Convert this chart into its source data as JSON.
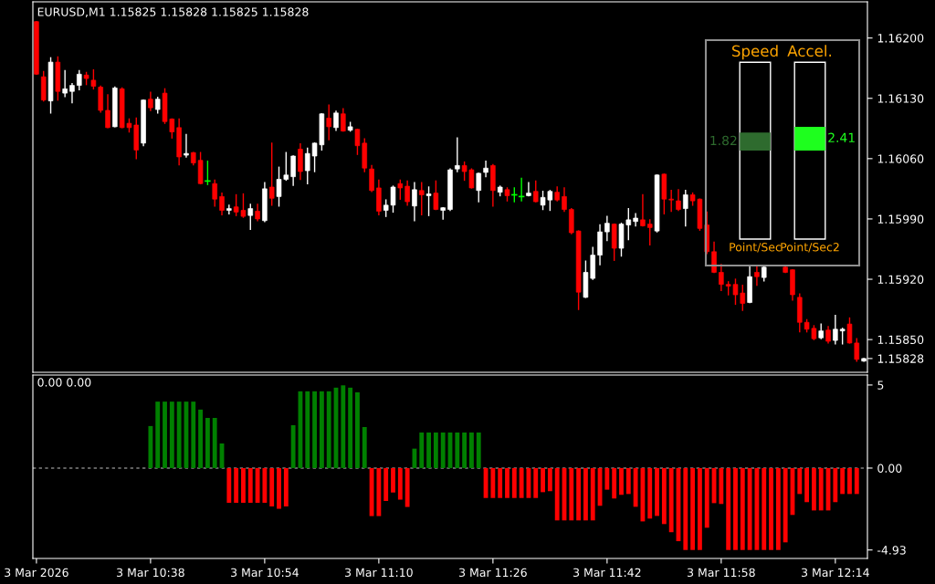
{
  "chart_data": [
    {
      "type": "candlestick",
      "title": "EURUSD,M1 1.15825 1.15828 1.15825 1.15828",
      "ohlc": [
        [
          1.16219,
          1.16219,
          1.16158,
          1.16158
        ],
        [
          1.16155,
          1.16161,
          1.16127,
          1.16128
        ],
        [
          1.16127,
          1.16177,
          1.16113,
          1.16172
        ],
        [
          1.16172,
          1.16178,
          1.16128,
          1.16138
        ],
        [
          1.16136,
          1.16162,
          1.16132,
          1.16141
        ],
        [
          1.16138,
          1.16147,
          1.16125,
          1.16145
        ],
        [
          1.16145,
          1.16162,
          1.1614,
          1.16158
        ],
        [
          1.16157,
          1.1616,
          1.16146,
          1.16153
        ],
        [
          1.16151,
          1.16163,
          1.16141,
          1.16144
        ],
        [
          1.16143,
          1.16144,
          1.16114,
          1.16116
        ],
        [
          1.16116,
          1.16134,
          1.16096,
          1.16096
        ],
        [
          1.16097,
          1.16143,
          1.16097,
          1.16142
        ],
        [
          1.16141,
          1.16142,
          1.16096,
          1.16096
        ],
        [
          1.16101,
          1.16106,
          1.16091,
          1.16096
        ],
        [
          1.16099,
          1.16107,
          1.1606,
          1.1607
        ],
        [
          1.16078,
          1.16128,
          1.16075,
          1.16128
        ],
        [
          1.16129,
          1.16137,
          1.16116,
          1.16119
        ],
        [
          1.16117,
          1.16131,
          1.16113,
          1.16129
        ],
        [
          1.16136,
          1.16141,
          1.16101,
          1.16103
        ],
        [
          1.16106,
          1.16106,
          1.16084,
          1.16091
        ],
        [
          1.16096,
          1.16106,
          1.16053,
          1.16062
        ],
        [
          1.16064,
          1.16088,
          1.16062,
          1.16066
        ],
        [
          1.16067,
          1.16067,
          1.16053,
          1.16055
        ],
        [
          1.16058,
          1.16067,
          1.16031,
          1.16031
        ],
        [
          1.16034,
          1.16057,
          1.1603,
          1.16034
        ],
        [
          1.16031,
          1.16035,
          1.16005,
          1.16013
        ],
        [
          1.16016,
          1.1602,
          1.15995,
          1.16
        ],
        [
          1.16,
          1.16006,
          1.15996,
          1.16002
        ],
        [
          1.16004,
          1.16018,
          1.15994,
          1.15998
        ],
        [
          1.16,
          1.16019,
          1.15992,
          1.15993
        ],
        [
          1.15994,
          1.16007,
          1.15978,
          1.16002
        ],
        [
          1.15999,
          1.16007,
          1.15988,
          1.1599
        ],
        [
          1.15988,
          1.16032,
          1.15987,
          1.16025
        ],
        [
          1.16027,
          1.16078,
          1.16006,
          1.16014
        ],
        [
          1.16016,
          1.1605,
          1.16005,
          1.16036
        ],
        [
          1.16036,
          1.16067,
          1.16035,
          1.16041
        ],
        [
          1.16039,
          1.16063,
          1.16029,
          1.16063
        ],
        [
          1.16071,
          1.16077,
          1.16036,
          1.16045
        ],
        [
          1.16046,
          1.16072,
          1.16031,
          1.16066
        ],
        [
          1.16063,
          1.16078,
          1.16045,
          1.16078
        ],
        [
          1.16076,
          1.16112,
          1.1607,
          1.16112
        ],
        [
          1.16107,
          1.16122,
          1.16082,
          1.16097
        ],
        [
          1.16096,
          1.16115,
          1.16093,
          1.16113
        ],
        [
          1.16112,
          1.16118,
          1.16092,
          1.16092
        ],
        [
          1.16093,
          1.16102,
          1.16092,
          1.16097
        ],
        [
          1.16094,
          1.16094,
          1.16065,
          1.16075
        ],
        [
          1.16078,
          1.16083,
          1.16045,
          1.16049
        ],
        [
          1.16048,
          1.16052,
          1.16022,
          1.16023
        ],
        [
          1.16026,
          1.16035,
          1.15995,
          1.15999
        ],
        [
          1.16,
          1.16012,
          1.15993,
          1.16006
        ],
        [
          1.16006,
          1.16028,
          1.15998,
          1.16027
        ],
        [
          1.16031,
          1.16035,
          1.16013,
          1.16026
        ],
        [
          1.16028,
          1.16034,
          1.16006,
          1.1601
        ],
        [
          1.16005,
          1.16032,
          1.15988,
          1.16024
        ],
        [
          1.16023,
          1.16032,
          1.15995,
          1.16018
        ],
        [
          1.16017,
          1.16027,
          1.15994,
          1.16019
        ],
        [
          1.1602,
          1.16034,
          1.16001,
          1.16001
        ],
        [
          1.16,
          1.16003,
          1.1599,
          1.16003
        ],
        [
          1.16001,
          1.16048,
          1.16,
          1.16047
        ],
        [
          1.16048,
          1.16084,
          1.16045,
          1.16052
        ],
        [
          1.16052,
          1.16056,
          1.16035,
          1.16045
        ],
        [
          1.16047,
          1.16048,
          1.16026,
          1.16026
        ],
        [
          1.16023,
          1.16043,
          1.1601,
          1.16043
        ],
        [
          1.16044,
          1.16057,
          1.16039,
          1.16049
        ],
        [
          1.16052,
          1.16053,
          1.16005,
          1.16023
        ],
        [
          1.16021,
          1.16028,
          1.16017,
          1.16027
        ],
        [
          1.16024,
          1.16026,
          1.16011,
          1.16017
        ],
        [
          1.16018,
          1.16026,
          1.1601,
          1.16018
        ],
        [
          1.16016,
          1.16037,
          1.16011,
          1.16016
        ],
        [
          1.16017,
          1.16032,
          1.16017,
          1.1602
        ],
        [
          1.16022,
          1.16034,
          1.1601,
          1.1601
        ],
        [
          1.16006,
          1.16022,
          1.16001,
          1.16015
        ],
        [
          1.16012,
          1.16023,
          1.16,
          1.16022
        ],
        [
          1.16021,
          1.16027,
          1.16011,
          1.16012
        ],
        [
          1.16016,
          1.16026,
          1.15999,
          1.16001
        ],
        [
          1.16001,
          1.16002,
          1.15973,
          1.15974
        ],
        [
          1.15976,
          1.15976,
          1.15885,
          1.15905
        ],
        [
          1.15899,
          1.15941,
          1.15899,
          1.15928
        ],
        [
          1.15921,
          1.15957,
          1.1592,
          1.15948
        ],
        [
          1.15948,
          1.15983,
          1.15937,
          1.15975
        ],
        [
          1.15975,
          1.15993,
          1.15965,
          1.15985
        ],
        [
          1.15984,
          1.15984,
          1.15942,
          1.15956
        ],
        [
          1.15956,
          1.15985,
          1.15947,
          1.15984
        ],
        [
          1.15983,
          1.16002,
          1.15966,
          1.15989
        ],
        [
          1.15987,
          1.15996,
          1.15982,
          1.15991
        ],
        [
          1.15989,
          1.16018,
          1.15982,
          1.15982
        ],
        [
          1.15984,
          1.15989,
          1.1596,
          1.1598
        ],
        [
          1.15976,
          1.16041,
          1.15975,
          1.16041
        ],
        [
          1.16042,
          1.16042,
          1.15996,
          1.16013
        ],
        [
          1.16013,
          1.16023,
          1.15999,
          1.16012
        ],
        [
          1.16011,
          1.16024,
          1.16,
          1.16001
        ],
        [
          1.16002,
          1.16023,
          1.15982,
          1.16018
        ],
        [
          1.16018,
          1.1602,
          1.16006,
          1.16011
        ],
        [
          1.16013,
          1.16013,
          1.15977,
          1.15979
        ],
        [
          1.15983,
          1.15998,
          1.1595,
          1.15952
        ],
        [
          1.15952,
          1.15963,
          1.15928,
          1.15928
        ],
        [
          1.15928,
          1.15937,
          1.15907,
          1.15914
        ],
        [
          1.15914,
          1.15917,
          1.15902,
          1.15912
        ],
        [
          1.15914,
          1.1592,
          1.15891,
          1.15902
        ],
        [
          1.15904,
          1.15913,
          1.15884,
          1.15892
        ],
        [
          1.15893,
          1.15935,
          1.15893,
          1.15923
        ],
        [
          1.15928,
          1.15935,
          1.15913,
          1.15923
        ],
        [
          1.15922,
          1.15934,
          1.15918,
          1.15934
        ],
        null,
        null,
        [
          1.15934,
          1.15936,
          1.15928,
          1.15928
        ],
        [
          1.15931,
          1.15931,
          1.15896,
          1.15902
        ],
        [
          1.15899,
          1.15903,
          1.15859,
          1.1587
        ],
        [
          1.1587,
          1.15873,
          1.15859,
          1.15862
        ],
        [
          1.15863,
          1.15866,
          1.1585,
          1.15851
        ],
        [
          1.15852,
          1.15868,
          1.15851,
          1.1586
        ],
        [
          1.15861,
          1.15865,
          1.15846,
          1.15848
        ],
        [
          1.15849,
          1.15878,
          1.15845,
          1.15862
        ],
        [
          1.1586,
          1.15863,
          1.15845,
          1.15862
        ],
        [
          1.15868,
          1.15875,
          1.15846,
          1.15846
        ],
        [
          1.15846,
          1.15851,
          1.15825,
          1.15827
        ],
        [
          1.15825,
          1.15828,
          1.15825,
          1.15828
        ]
      ],
      "colors": [
        "#ff0000",
        "#ff0000",
        "#ffffff",
        "#ff0000",
        "#ffffff",
        "#ffffff",
        "#ffffff",
        "#ff0000",
        "#ff0000",
        "#ff0000",
        "#ff0000",
        "#ffffff",
        "#ff0000",
        "#ff0000",
        "#ff0000",
        "#ffffff",
        "#ff0000",
        "#ffffff",
        "#ff0000",
        "#ff0000",
        "#ff0000",
        "#ffffff",
        "#ff0000",
        "#ff0000",
        "#00ff00",
        "#ff0000",
        "#ff0000",
        "#ffffff",
        "#ff0000",
        "#ff0000",
        "#ffffff",
        "#ff0000",
        "#ffffff",
        "#ff0000",
        "#ffffff",
        "#ffffff",
        "#ffffff",
        "#ff0000",
        "#ffffff",
        "#ffffff",
        "#ffffff",
        "#ff0000",
        "#ffffff",
        "#ff0000",
        "#ffffff",
        "#ff0000",
        "#ff0000",
        "#ff0000",
        "#ff0000",
        "#ffffff",
        "#ffffff",
        "#ff0000",
        "#ff0000",
        "#ffffff",
        "#ff0000",
        "#ffffff",
        "#ff0000",
        "#ffffff",
        "#ffffff",
        "#ffffff",
        "#ff0000",
        "#ff0000",
        "#ffffff",
        "#ffffff",
        "#ff0000",
        "#ffffff",
        "#ff0000",
        "#00ff00",
        "#00ff00",
        "#ffffff",
        "#ff0000",
        "#ffffff",
        "#ffffff",
        "#ff0000",
        "#ff0000",
        "#ff0000",
        "#ff0000",
        "#ffffff",
        "#ffffff",
        "#ffffff",
        "#ffffff",
        "#ff0000",
        "#ffffff",
        "#ffffff",
        "#ffffff",
        "#ff0000",
        "#ff0000",
        "#ffffff",
        "#ff0000",
        "#ff0000",
        "#ff0000",
        "#ffffff",
        "#ff0000",
        "#ff0000",
        "#ff0000",
        "#ff0000",
        "#ff0000",
        "#ff0000",
        "#ff0000",
        "#ff0000",
        "#ffffff",
        "#ff0000",
        "#ffffff",
        null,
        null,
        "#ff0000",
        "#ff0000",
        "#ff0000",
        "#ff0000",
        "#ff0000",
        "#ffffff",
        "#ff0000",
        "#ffffff",
        "#ffffff",
        "#ff0000",
        "#ff0000",
        "#ffffff"
      ],
      "ylim": [
        1.15812,
        1.16242
      ],
      "yticks": [
        {
          "value": 1.162,
          "label": "1.16200"
        },
        {
          "value": 1.1613,
          "label": "1.16130"
        },
        {
          "value": 1.1606,
          "label": "1.16060"
        },
        {
          "value": 1.1599,
          "label": "1.15990"
        },
        {
          "value": 1.1592,
          "label": "1.15920"
        },
        {
          "value": 1.1585,
          "label": "1.15850"
        },
        {
          "value": 1.15828,
          "label": "1.15828"
        }
      ],
      "tick_labels": "y"
    },
    {
      "type": "bar",
      "title": "0.00 0.00",
      "categories": [
        "3 Mar 2026",
        null,
        null,
        null,
        null,
        null,
        null,
        null,
        null,
        null,
        null,
        null,
        null,
        null,
        null,
        null,
        "3 Mar 10:38",
        null,
        null,
        null,
        null,
        null,
        null,
        null,
        null,
        null,
        null,
        null,
        null,
        null,
        null,
        null,
        "3 Mar 10:54",
        null,
        null,
        null,
        null,
        null,
        null,
        null,
        null,
        null,
        null,
        null,
        null,
        null,
        null,
        null,
        "3 Mar 11:10",
        null,
        null,
        null,
        null,
        null,
        null,
        null,
        null,
        null,
        null,
        null,
        null,
        null,
        null,
        null,
        "3 Mar 11:26",
        null,
        null,
        null,
        null,
        null,
        null,
        null,
        null,
        null,
        null,
        null,
        null,
        null,
        null,
        null,
        "3 Mar 11:42",
        null,
        null,
        null,
        null,
        null,
        null,
        null,
        null,
        null,
        null,
        null,
        null,
        null,
        null,
        null,
        "3 Mar 11:58",
        null,
        null,
        null,
        null,
        null,
        null,
        null,
        null,
        null,
        null,
        null,
        null,
        null,
        null,
        null,
        "3 Mar 12:14",
        null,
        null,
        null,
        null
      ],
      "series": [
        {
          "color": "#008000",
          "values": [
            null,
            null,
            null,
            null,
            null,
            null,
            null,
            null,
            null,
            null,
            null,
            null,
            null,
            null,
            null,
            null,
            2.53,
            4.0,
            4.0,
            4.0,
            4.0,
            4.0,
            4.0,
            3.52,
            3.02,
            3.02,
            1.48,
            null,
            null,
            null,
            null,
            null,
            null,
            null,
            null,
            null,
            2.58,
            4.62,
            4.62,
            4.62,
            4.62,
            4.62,
            4.84,
            4.98,
            4.84,
            4.56,
            2.47,
            null,
            null,
            null,
            null,
            null,
            null,
            1.17,
            2.14,
            2.14,
            2.14,
            2.14,
            2.14,
            2.14,
            2.14,
            2.14,
            2.14,
            null,
            null,
            null,
            null,
            null,
            null,
            null,
            null,
            null,
            null,
            null,
            null,
            null,
            null,
            null,
            null,
            null,
            null,
            null,
            null,
            null,
            null,
            null,
            null,
            null,
            null,
            null,
            null,
            null,
            null,
            null,
            null,
            null,
            null,
            null,
            null,
            null,
            null,
            null,
            null,
            null,
            null,
            null,
            null,
            null,
            null,
            null,
            null,
            null,
            null,
            null,
            null,
            null,
            null
          ]
        },
        {
          "color": "#ff0000",
          "values": [
            null,
            null,
            null,
            null,
            null,
            null,
            null,
            null,
            null,
            null,
            null,
            null,
            null,
            null,
            null,
            null,
            null,
            null,
            null,
            null,
            null,
            null,
            null,
            null,
            null,
            null,
            null,
            -2.09,
            -2.09,
            -2.09,
            -2.09,
            -2.09,
            -2.09,
            -2.31,
            -2.45,
            -2.31,
            null,
            null,
            null,
            null,
            null,
            null,
            null,
            null,
            null,
            null,
            null,
            -2.89,
            -2.89,
            -1.98,
            -1.47,
            -1.9,
            -2.34,
            null,
            null,
            null,
            null,
            null,
            null,
            null,
            null,
            null,
            null,
            -1.8,
            -1.8,
            -1.8,
            -1.8,
            -1.8,
            -1.8,
            -1.8,
            -1.8,
            -1.45,
            -1.39,
            -3.15,
            -3.15,
            -3.15,
            -3.15,
            -3.15,
            -3.15,
            -2.27,
            -1.3,
            -1.83,
            -1.61,
            -1.56,
            -2.33,
            -3.21,
            -3.04,
            -2.88,
            -3.37,
            -3.86,
            -4.4,
            -4.93,
            -4.93,
            -4.93,
            -3.59,
            -2.11,
            -2.16,
            -4.93,
            -4.93,
            -4.93,
            -4.93,
            -4.93,
            -4.93,
            -4.93,
            -4.93,
            -4.47,
            -2.82,
            -1.56,
            -2.05,
            -2.55,
            -2.55,
            -2.55,
            -2.05,
            -1.56,
            -1.56,
            -1.56,
            null
          ]
        }
      ],
      "ylim": [
        -5.44,
        5.6
      ],
      "yticks": [
        5,
        {
          "value": 0,
          "label": "0.00"
        },
        -4.93
      ],
      "ref_lines": [
        {
          "axis": "y",
          "value": 0,
          "color": "#c0c0c0",
          "line_style": "dashed"
        }
      ]
    },
    {
      "type": "other",
      "categories": [
        "Speed",
        "Accel."
      ],
      "values": [
        1.82,
        2.41
      ],
      "colors": [
        "#2e6b2e",
        "#1eff1e"
      ],
      "data_labels": true,
      "annotations": [
        "Point/Sec",
        "Point/Sec2"
      ]
    }
  ]
}
